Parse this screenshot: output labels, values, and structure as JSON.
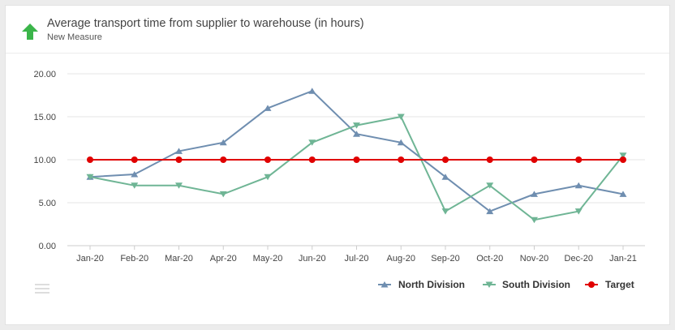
{
  "header": {
    "title": "Average transport time from supplier to warehouse (in hours)",
    "subtitle": "New Measure",
    "trend_icon": "up-arrow-icon",
    "trend_color": "#3bb54a"
  },
  "menu": {
    "icon": "hamburger-menu-icon"
  },
  "chart_data": {
    "type": "line",
    "title": "Average transport time from supplier to warehouse (in hours)",
    "xlabel": "",
    "ylabel": "",
    "ylim": [
      0,
      20
    ],
    "yticks": [
      "0.00",
      "5.00",
      "10.00",
      "15.00",
      "20.00"
    ],
    "categories": [
      "Jan-20",
      "Feb-20",
      "Mar-20",
      "Apr-20",
      "May-20",
      "Jun-20",
      "Jul-20",
      "Aug-20",
      "Sep-20",
      "Oct-20",
      "Nov-20",
      "Dec-20",
      "Jan-21"
    ],
    "grid": true,
    "legend_position": "bottom-right",
    "series": [
      {
        "name": "North Division",
        "color": "#6f8eb0",
        "marker": "triangle-up",
        "values": [
          8,
          8.3,
          11,
          12,
          16,
          18,
          13,
          12,
          8,
          4,
          6,
          7,
          6
        ]
      },
      {
        "name": "South Division",
        "color": "#6fb595",
        "marker": "triangle-down",
        "values": [
          8,
          7,
          7,
          6,
          8,
          12,
          14,
          15,
          4,
          7,
          3,
          4,
          10.5
        ]
      },
      {
        "name": "Target",
        "color": "#e00000",
        "marker": "circle",
        "values": [
          10,
          10,
          10,
          10,
          10,
          10,
          10,
          10,
          10,
          10,
          10,
          10,
          10
        ]
      }
    ]
  }
}
